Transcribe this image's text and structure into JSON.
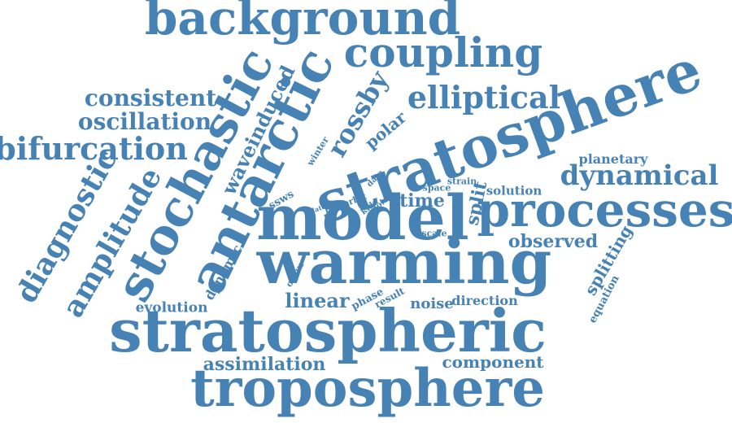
{
  "color": "#4682b4",
  "words": [
    "background",
    "coupling",
    "stochastic",
    "antarctic",
    "stratosphere",
    "consistent",
    "oscillation",
    "bifurcation",
    "elliptical",
    "rossby",
    "waveinduced",
    "winter",
    "polar",
    "planetary",
    "dynamical",
    "diagnostic",
    "amplitude",
    "model",
    "processes",
    "space",
    "strain",
    "split",
    "solution",
    "time",
    "data",
    "kida",
    "point",
    "late",
    "proc",
    "orbit",
    "ssws",
    "scale",
    "observed",
    "warming",
    "dynamic",
    "occur",
    "splitting",
    "linear",
    "phase",
    "result",
    "noise",
    "direction",
    "equation",
    "evolution",
    "stratospheric",
    "component",
    "assimilation",
    "troposphere"
  ]
}
